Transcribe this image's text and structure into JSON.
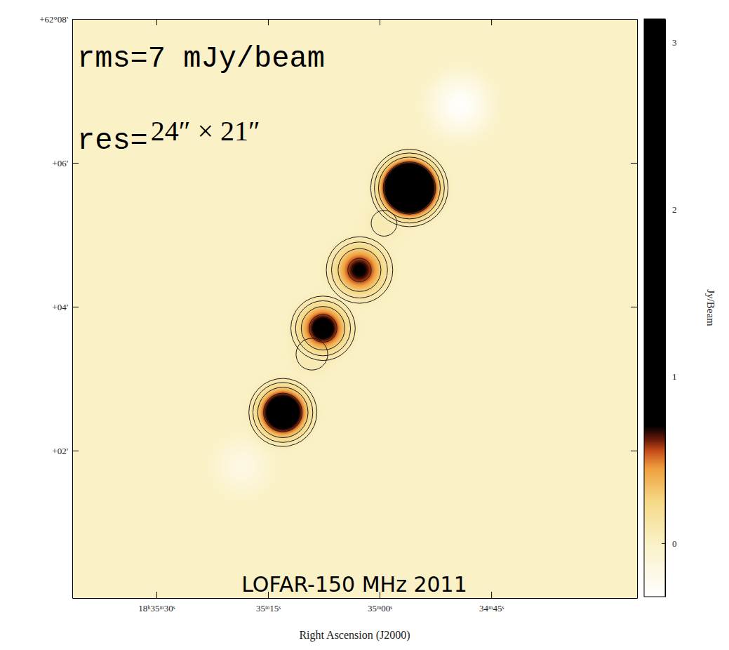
{
  "chart_data": {
    "type": "image",
    "title": "LOFAR-150 MHz 2011",
    "annotations": [
      "rms=7 mJy/beam"
    ],
    "res_label": "res=",
    "res_value": "24″ × 21″",
    "x_label": "Right Ascension (J2000)",
    "xlim": [
      2141.3,
      2065.4
    ],
    "xticks": [
      {
        "value": 2130,
        "label": "18ʰ35ᵐ30ˢ"
      },
      {
        "value": 2115,
        "label": "35ᵐ15ˢ"
      },
      {
        "value": 2100,
        "label": "35ᵐ00ˢ"
      },
      {
        "value": 2085,
        "label": "34ᵐ45ˢ"
      }
    ],
    "ylim": [
      -0.05,
      8
    ],
    "yticks": [
      {
        "value": 8,
        "label": "+62°08'"
      },
      {
        "value": 6,
        "label": "+06'"
      },
      {
        "value": 4,
        "label": "+04'"
      },
      {
        "value": 2,
        "label": "+02'"
      }
    ],
    "sources": [
      {
        "x": 2089.2,
        "y": 6.8,
        "peak": -0.3,
        "fwhm": 40
      },
      {
        "x": 2118.5,
        "y": 1.78,
        "peak": -0.15,
        "fwhm": 40
      },
      {
        "x": 2099.4,
        "y": 5.16,
        "peak": 0.1,
        "fwhm": 30
      },
      {
        "x": 2109.1,
        "y": 3.34,
        "peak": 0.12,
        "fwhm": 30
      },
      {
        "x": 2096.0,
        "y": 5.65,
        "peak": 3.2,
        "fwhm": 27.5
      },
      {
        "x": 2102.7,
        "y": 4.51,
        "peak": 0.75,
        "fwhm": 30
      },
      {
        "x": 2107.6,
        "y": 3.7,
        "peak": 0.9,
        "fwhm": 28
      },
      {
        "x": 2113.0,
        "y": 2.53,
        "peak": 1.5,
        "fwhm": 27
      }
    ],
    "contours": [
      0.07,
      0.14,
      0.28,
      0.56
    ],
    "colorbar": {
      "label": "Jy/Beam",
      "range": [
        -0.32,
        3.14
      ],
      "ticks": [
        0,
        1,
        2,
        3
      ],
      "colormap": [
        [
          -0.32,
          "#ffffff"
        ],
        [
          0.0,
          "#faf1c6"
        ],
        [
          0.25,
          "#f5d987"
        ],
        [
          0.45,
          "#ef9f3e"
        ],
        [
          0.55,
          "#c84f1a"
        ],
        [
          0.62,
          "#6a1a08"
        ],
        [
          0.7,
          "#000000"
        ],
        [
          3.14,
          "#000000"
        ]
      ]
    }
  }
}
